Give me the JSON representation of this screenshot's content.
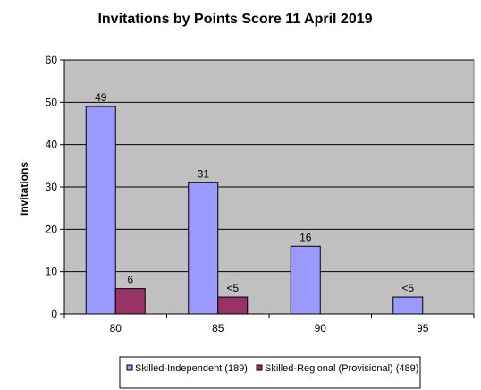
{
  "chart_data": {
    "type": "bar",
    "title": "Invitations by Points Score 11 April 2019",
    "xlabel": "",
    "ylabel": "Invitations",
    "categories": [
      "80",
      "85",
      "90",
      "95"
    ],
    "ylim": [
      0,
      60
    ],
    "yticks": [
      0,
      10,
      20,
      30,
      40,
      50,
      60
    ],
    "grid": true,
    "legend_position": "bottom",
    "plot_background": "#C0C0C0",
    "series": [
      {
        "name": "Skilled-Independent (189)",
        "color": "#9999FF",
        "values": [
          49,
          31,
          16,
          4
        ],
        "labels": [
          "49",
          "31",
          "16",
          "<5"
        ]
      },
      {
        "name": "Skilled-Regional (Provisional) (489)",
        "color": "#993366",
        "values": [
          6,
          4,
          null,
          null
        ],
        "labels": [
          "6",
          "<5",
          "",
          ""
        ]
      }
    ]
  }
}
